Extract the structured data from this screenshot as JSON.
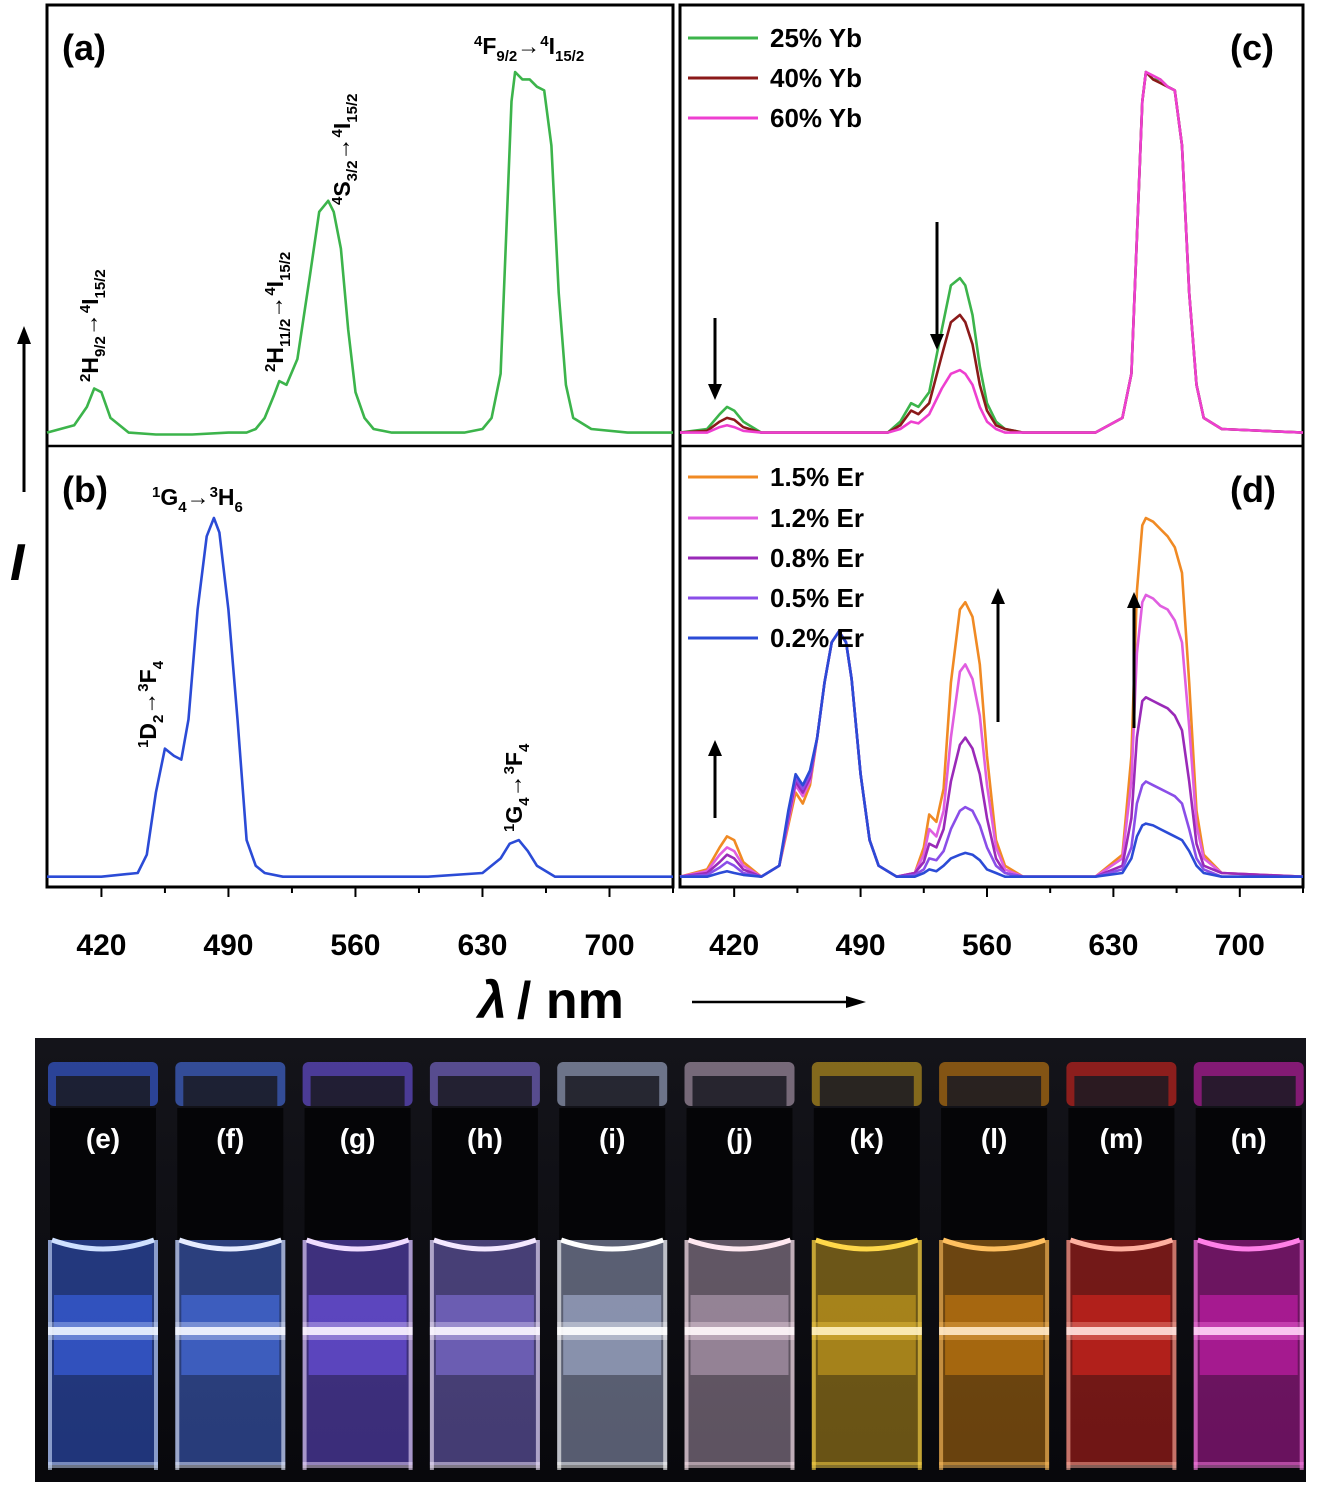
{
  "figure": {
    "xlabel_symbol": "λ",
    "xlabel_unit": "/ nm",
    "ylabel": "I"
  },
  "chart_data": [
    {
      "id": "a",
      "panel_label": "(a)",
      "type": "line",
      "xlim": [
        390,
        735
      ],
      "color": "#3cb44b",
      "x": [
        390,
        405,
        412,
        416,
        420,
        425,
        435,
        450,
        470,
        490,
        500,
        505,
        510,
        515,
        518,
        522,
        528,
        535,
        540,
        545,
        548,
        552,
        556,
        560,
        565,
        570,
        580,
        600,
        620,
        630,
        635,
        640,
        643,
        646,
        648,
        652,
        656,
        660,
        664,
        668,
        672,
        676,
        680,
        690,
        710,
        735
      ],
      "y": [
        0.02,
        0.04,
        0.09,
        0.14,
        0.13,
        0.06,
        0.02,
        0.015,
        0.015,
        0.02,
        0.02,
        0.03,
        0.06,
        0.12,
        0.16,
        0.15,
        0.22,
        0.45,
        0.62,
        0.65,
        0.62,
        0.52,
        0.3,
        0.13,
        0.06,
        0.03,
        0.02,
        0.02,
        0.02,
        0.03,
        0.06,
        0.18,
        0.55,
        0.92,
        1.0,
        0.98,
        0.98,
        0.96,
        0.95,
        0.8,
        0.4,
        0.15,
        0.06,
        0.03,
        0.02,
        0.02
      ],
      "annotations": [
        {
          "upper": "2",
          "main": "H",
          "lower": "9/2",
          "arrow": "→",
          "upper2": "4",
          "main2": "I",
          "lower2": "15/2"
        },
        {
          "upper": "2",
          "main": "H",
          "lower": "11/2",
          "arrow": "→",
          "upper2": "4",
          "main2": "I",
          "lower2": "15/2"
        },
        {
          "upper": "4",
          "main": "S",
          "lower": "3/2",
          "arrow": "→",
          "upper2": "4",
          "main2": "I",
          "lower2": "15/2"
        },
        {
          "upper": "4",
          "main": "F",
          "lower": "9/2",
          "arrow": "→",
          "upper2": "4",
          "main2": "I",
          "lower2": "15/2"
        }
      ]
    },
    {
      "id": "b",
      "panel_label": "(b)",
      "type": "line",
      "xlim": [
        390,
        735
      ],
      "x_ticks": [
        420,
        490,
        560,
        630,
        700
      ],
      "color": "#2b4bd6",
      "x": [
        390,
        420,
        440,
        445,
        450,
        455,
        460,
        464,
        468,
        473,
        478,
        482,
        485,
        490,
        495,
        500,
        505,
        510,
        520,
        540,
        600,
        630,
        640,
        645,
        650,
        655,
        660,
        670,
        700,
        735
      ],
      "y": [
        0.02,
        0.02,
        0.03,
        0.08,
        0.25,
        0.37,
        0.35,
        0.34,
        0.45,
        0.75,
        0.95,
        1.0,
        0.96,
        0.75,
        0.45,
        0.12,
        0.05,
        0.03,
        0.02,
        0.02,
        0.02,
        0.03,
        0.07,
        0.11,
        0.12,
        0.09,
        0.05,
        0.02,
        0.02,
        0.02
      ],
      "annotations": [
        {
          "upper": "1",
          "main": "G",
          "lower": "4",
          "arrow": "→",
          "upper2": "3",
          "main2": "H",
          "lower2": "6"
        },
        {
          "upper": "1",
          "main": "D",
          "lower": "2",
          "arrow": "→",
          "upper2": "3",
          "main2": "F",
          "lower2": "4"
        },
        {
          "upper": "1",
          "main": "G",
          "lower": "4",
          "arrow": "→",
          "upper2": "3",
          "main2": "F",
          "lower2": "4"
        }
      ]
    },
    {
      "id": "c",
      "panel_label": "(c)",
      "type": "line",
      "xlim": [
        390,
        735
      ],
      "legend": [
        {
          "name": "25% Yb",
          "color": "#3cb44b"
        },
        {
          "name": "40% Yb",
          "color": "#8b1a1a"
        },
        {
          "name": "60% Yb",
          "color": "#ee3fd0"
        }
      ],
      "x": [
        390,
        405,
        412,
        416,
        420,
        425,
        435,
        470,
        505,
        512,
        518,
        522,
        528,
        535,
        540,
        545,
        548,
        552,
        556,
        560,
        565,
        570,
        580,
        620,
        635,
        640,
        643,
        646,
        648,
        652,
        656,
        660,
        664,
        668,
        672,
        676,
        680,
        690,
        735
      ],
      "series": [
        {
          "name": "25% Yb",
          "y": [
            0.02,
            0.03,
            0.07,
            0.09,
            0.08,
            0.05,
            0.02,
            0.02,
            0.02,
            0.05,
            0.1,
            0.09,
            0.13,
            0.3,
            0.42,
            0.44,
            0.42,
            0.34,
            0.2,
            0.1,
            0.05,
            0.03,
            0.02,
            0.02,
            0.06,
            0.18,
            0.55,
            0.92,
            1.0,
            0.98,
            0.98,
            0.96,
            0.95,
            0.8,
            0.4,
            0.15,
            0.06,
            0.03,
            0.02
          ]
        },
        {
          "name": "40% Yb",
          "y": [
            0.02,
            0.025,
            0.05,
            0.06,
            0.055,
            0.035,
            0.02,
            0.02,
            0.02,
            0.04,
            0.08,
            0.07,
            0.1,
            0.23,
            0.32,
            0.34,
            0.32,
            0.26,
            0.15,
            0.08,
            0.04,
            0.03,
            0.02,
            0.02,
            0.06,
            0.18,
            0.55,
            0.92,
            1.0,
            0.98,
            0.97,
            0.96,
            0.95,
            0.8,
            0.4,
            0.15,
            0.06,
            0.03,
            0.02
          ]
        },
        {
          "name": "60% Yb",
          "y": [
            0.02,
            0.02,
            0.035,
            0.04,
            0.035,
            0.025,
            0.02,
            0.02,
            0.02,
            0.03,
            0.05,
            0.045,
            0.07,
            0.14,
            0.18,
            0.19,
            0.18,
            0.15,
            0.09,
            0.05,
            0.03,
            0.02,
            0.02,
            0.02,
            0.06,
            0.18,
            0.55,
            0.92,
            1.0,
            0.99,
            0.98,
            0.96,
            0.95,
            0.8,
            0.4,
            0.15,
            0.06,
            0.03,
            0.02
          ]
        }
      ]
    },
    {
      "id": "d",
      "panel_label": "(d)",
      "type": "line",
      "xlim": [
        390,
        735
      ],
      "x_ticks": [
        420,
        490,
        560,
        630,
        700
      ],
      "legend": [
        {
          "name": "1.5% Er",
          "color": "#f08a24"
        },
        {
          "name": "1.2% Er",
          "color": "#e05ee0"
        },
        {
          "name": "0.8% Er",
          "color": "#9a2ab8"
        },
        {
          "name": "0.5% Er",
          "color": "#8a4ee8"
        },
        {
          "name": "0.2% Er",
          "color": "#2b4bd6"
        }
      ],
      "x": [
        390,
        405,
        412,
        416,
        420,
        425,
        435,
        445,
        450,
        454,
        458,
        462,
        466,
        470,
        474,
        478,
        482,
        485,
        490,
        495,
        500,
        510,
        520,
        525,
        528,
        532,
        536,
        540,
        545,
        548,
        552,
        556,
        560,
        565,
        570,
        580,
        620,
        635,
        640,
        643,
        646,
        648,
        652,
        656,
        660,
        664,
        668,
        672,
        676,
        680,
        690,
        735
      ],
      "series": [
        {
          "name": "1.5% Er",
          "y": [
            0.02,
            0.04,
            0.1,
            0.13,
            0.12,
            0.06,
            0.02,
            0.05,
            0.16,
            0.25,
            0.22,
            0.27,
            0.4,
            0.55,
            0.66,
            0.69,
            0.66,
            0.56,
            0.3,
            0.12,
            0.05,
            0.02,
            0.03,
            0.1,
            0.19,
            0.17,
            0.26,
            0.55,
            0.75,
            0.77,
            0.73,
            0.6,
            0.35,
            0.12,
            0.05,
            0.02,
            0.02,
            0.08,
            0.35,
            0.8,
            0.98,
            1.0,
            0.99,
            0.97,
            0.95,
            0.92,
            0.85,
            0.55,
            0.2,
            0.08,
            0.03,
            0.02
          ]
        },
        {
          "name": "1.2% Er",
          "y": [
            0.02,
            0.035,
            0.08,
            0.1,
            0.09,
            0.05,
            0.02,
            0.05,
            0.17,
            0.27,
            0.24,
            0.28,
            0.4,
            0.55,
            0.66,
            0.69,
            0.66,
            0.56,
            0.3,
            0.12,
            0.05,
            0.02,
            0.03,
            0.08,
            0.15,
            0.13,
            0.2,
            0.4,
            0.58,
            0.6,
            0.56,
            0.46,
            0.27,
            0.1,
            0.04,
            0.02,
            0.02,
            0.07,
            0.28,
            0.63,
            0.77,
            0.79,
            0.78,
            0.76,
            0.75,
            0.72,
            0.66,
            0.43,
            0.16,
            0.07,
            0.03,
            0.02
          ]
        },
        {
          "name": "0.8% Er",
          "y": [
            0.02,
            0.03,
            0.06,
            0.08,
            0.07,
            0.04,
            0.02,
            0.05,
            0.18,
            0.28,
            0.25,
            0.29,
            0.4,
            0.55,
            0.66,
            0.69,
            0.66,
            0.56,
            0.3,
            0.12,
            0.05,
            0.02,
            0.03,
            0.06,
            0.11,
            0.1,
            0.15,
            0.28,
            0.38,
            0.4,
            0.37,
            0.3,
            0.18,
            0.07,
            0.03,
            0.02,
            0.02,
            0.05,
            0.18,
            0.4,
            0.5,
            0.51,
            0.5,
            0.49,
            0.48,
            0.46,
            0.42,
            0.28,
            0.11,
            0.05,
            0.03,
            0.02
          ]
        },
        {
          "name": "0.5% Er",
          "y": [
            0.02,
            0.025,
            0.045,
            0.06,
            0.05,
            0.03,
            0.02,
            0.05,
            0.19,
            0.29,
            0.26,
            0.3,
            0.4,
            0.55,
            0.66,
            0.69,
            0.66,
            0.56,
            0.3,
            0.12,
            0.05,
            0.02,
            0.025,
            0.04,
            0.07,
            0.065,
            0.09,
            0.15,
            0.2,
            0.21,
            0.2,
            0.16,
            0.1,
            0.05,
            0.03,
            0.02,
            0.02,
            0.04,
            0.1,
            0.22,
            0.27,
            0.28,
            0.27,
            0.26,
            0.25,
            0.24,
            0.22,
            0.15,
            0.07,
            0.04,
            0.02,
            0.02
          ]
        },
        {
          "name": "0.2% Er",
          "y": [
            0.02,
            0.02,
            0.03,
            0.035,
            0.03,
            0.025,
            0.02,
            0.05,
            0.2,
            0.3,
            0.27,
            0.31,
            0.4,
            0.55,
            0.66,
            0.69,
            0.66,
            0.56,
            0.3,
            0.12,
            0.05,
            0.02,
            0.02,
            0.03,
            0.04,
            0.035,
            0.05,
            0.07,
            0.08,
            0.085,
            0.08,
            0.065,
            0.04,
            0.03,
            0.02,
            0.02,
            0.02,
            0.03,
            0.07,
            0.13,
            0.16,
            0.165,
            0.16,
            0.15,
            0.14,
            0.13,
            0.12,
            0.09,
            0.05,
            0.03,
            0.02,
            0.02
          ]
        }
      ]
    }
  ],
  "photo": {
    "vials": [
      {
        "label": "(e)",
        "glow": "#3f6cff",
        "meniscus": "#cfe0ff"
      },
      {
        "label": "(f)",
        "glow": "#4f7cff",
        "meniscus": "#e6ecff"
      },
      {
        "label": "(g)",
        "glow": "#7a5cff",
        "meniscus": "#f0dcff"
      },
      {
        "label": "(h)",
        "glow": "#8f7cf0",
        "meniscus": "#f4e8ff"
      },
      {
        "label": "(i)",
        "glow": "#b8c4e8",
        "meniscus": "#ffffff"
      },
      {
        "label": "(j)",
        "glow": "#c8b0c8",
        "meniscus": "#ffe8f0"
      },
      {
        "label": "(k)",
        "glow": "#e0b020",
        "meniscus": "#ffd84a"
      },
      {
        "label": "(l)",
        "glow": "#e08a10",
        "meniscus": "#ffc060"
      },
      {
        "label": "(m)",
        "glow": "#f02820",
        "meniscus": "#ffb0a0"
      },
      {
        "label": "(n)",
        "glow": "#e020c0",
        "meniscus": "#ff80e8"
      }
    ]
  }
}
